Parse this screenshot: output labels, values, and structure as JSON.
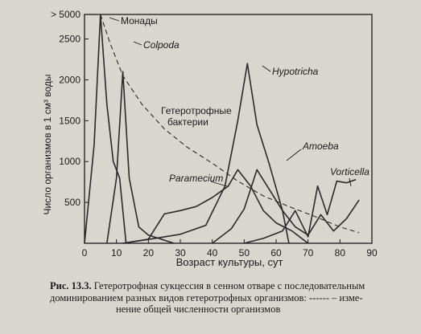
{
  "chart_data": {
    "type": "line",
    "title": "",
    "xlabel": "Возраст культуры, сут",
    "ylabel": "Число организмов в 1 см³ воды",
    "xlim": [
      0,
      90
    ],
    "ylim": [
      0,
      2800
    ],
    "x_ticks": [
      "0",
      "10",
      "20",
      "30",
      "40",
      "50",
      "60",
      "70",
      "80",
      "90"
    ],
    "x_tick_values": [
      0,
      10,
      20,
      30,
      40,
      50,
      60,
      70,
      80,
      90
    ],
    "y_ticks": [
      "500",
      "1000",
      "1500",
      "2000",
      "2500",
      "> 5000"
    ],
    "y_tick_values": [
      500,
      1000,
      1500,
      2000,
      2500,
      2800
    ],
    "grid": false,
    "legend": "none",
    "series": [
      {
        "name": "Монады",
        "style": "solid",
        "x": [
          0,
          3,
          5,
          7,
          9,
          11,
          13
        ],
        "y": [
          0,
          1200,
          2800,
          1700,
          1000,
          800,
          0
        ]
      },
      {
        "name": "Colpoda",
        "style": "solid",
        "x": [
          7,
          10,
          12,
          14,
          17,
          20,
          24,
          28
        ],
        "y": [
          0,
          800,
          2100,
          800,
          200,
          100,
          50,
          0
        ]
      },
      {
        "name": "Гетеротрофные бактерии",
        "style": "dashed",
        "x": [
          5,
          8,
          12,
          18,
          25,
          32,
          40,
          48,
          56,
          64,
          72,
          80,
          86
        ],
        "y": [
          2800,
          2450,
          2050,
          1700,
          1400,
          1180,
          980,
          760,
          580,
          450,
          330,
          200,
          130
        ]
      },
      {
        "name": "Hypotricha",
        "style": "solid",
        "x": [
          12,
          22,
          30,
          38,
          44,
          48,
          51,
          54,
          58,
          62,
          64
        ],
        "y": [
          0,
          60,
          110,
          220,
          700,
          1500,
          2200,
          1450,
          950,
          400,
          0
        ]
      },
      {
        "name": "Paramecium",
        "style": "solid",
        "x": [
          12,
          20,
          25,
          30,
          35,
          40,
          45,
          48,
          52,
          56,
          60,
          65,
          70
        ],
        "y": [
          0,
          50,
          360,
          400,
          450,
          560,
          700,
          900,
          700,
          400,
          250,
          150,
          0
        ]
      },
      {
        "name": "Amoeba",
        "style": "solid",
        "x": [
          40,
          46,
          50,
          54,
          58,
          62,
          66,
          70,
          74,
          78,
          82,
          86
        ],
        "y": [
          0,
          180,
          420,
          900,
          650,
          400,
          200,
          100,
          350,
          150,
          300,
          530
        ]
      },
      {
        "name": "Vorticella",
        "style": "solid",
        "x": [
          50,
          56,
          62,
          66,
          70,
          73,
          76,
          79,
          82,
          85
        ],
        "y": [
          0,
          60,
          150,
          400,
          80,
          700,
          350,
          760,
          740,
          780
        ]
      }
    ],
    "annotations": [
      {
        "text": "Монады",
        "style": "normal"
      },
      {
        "text": "Colpoda",
        "style": "italic"
      },
      {
        "text": "Гетеротрофные",
        "style": "normal"
      },
      {
        "text": "бактерии",
        "style": "normal"
      },
      {
        "text": "Hypotricha",
        "style": "italic"
      },
      {
        "text": "Paramecium",
        "style": "italic"
      },
      {
        "text": "Amoeba",
        "style": "italic"
      },
      {
        "text": "Vorticella",
        "style": "italic"
      }
    ]
  },
  "caption": {
    "label": "Рис. 13.3.",
    "line1": "Гетеротрофная сукцессия в сенном отваре с последовательным",
    "line2": "доминированием разных видов гетеротрофных организмов: ------ – изме-",
    "line3": "нение общей численности организмов"
  }
}
